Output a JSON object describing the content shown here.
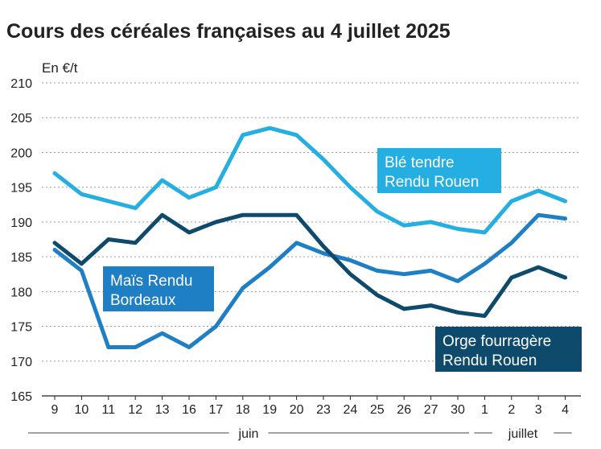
{
  "chart_data": {
    "type": "line",
    "title": "Cours des céréales françaises au 4 juillet 2025",
    "ylabel": "En €/t",
    "xlabel": "",
    "ylim": [
      165,
      210
    ],
    "yticks": [
      165,
      170,
      175,
      180,
      185,
      190,
      195,
      200,
      205,
      210
    ],
    "grid": true,
    "categories": [
      "9",
      "10",
      "11",
      "12",
      "13",
      "16",
      "17",
      "18",
      "19",
      "20",
      "23",
      "24",
      "25",
      "26",
      "27",
      "30",
      "1",
      "2",
      "3",
      "4"
    ],
    "months": [
      {
        "label": "juin",
        "start": 0,
        "end": 15
      },
      {
        "label": "juillet",
        "start": 16,
        "end": 19
      }
    ],
    "series": [
      {
        "name": "Blé tendre Rendu Rouen",
        "label_lines": [
          "Blé tendre",
          "Rendu Rouen"
        ],
        "color": "#25aee2",
        "label_bg": "#25aee2",
        "values": [
          197,
          194,
          193,
          192,
          196,
          193.5,
          195,
          202.5,
          203.5,
          202.5,
          199,
          195,
          191.5,
          189.5,
          190,
          189,
          188.5,
          193,
          194.5,
          193
        ]
      },
      {
        "name": "Maïs Rendu Bordeaux",
        "label_lines": [
          "Maïs Rendu",
          "Bordeaux"
        ],
        "color": "#1f7fc4",
        "label_bg": "#1f7fc4",
        "values": [
          186,
          183,
          172,
          172,
          174,
          172,
          175,
          180.5,
          183.5,
          187,
          185.5,
          184.5,
          183,
          182.5,
          183,
          181.5,
          184,
          187,
          191,
          190.5
        ]
      },
      {
        "name": "Orge fourragère Rendu Rouen",
        "label_lines": [
          "Orge fourragère",
          "Rendu Rouen"
        ],
        "color": "#0d4a6b",
        "label_bg": "#0d4a6b",
        "values": [
          187,
          184,
          187.5,
          187,
          191,
          188.5,
          190,
          191,
          191,
          191,
          186.5,
          182.5,
          179.5,
          177.5,
          178,
          177,
          176.5,
          182,
          183.5,
          182
        ]
      }
    ]
  }
}
